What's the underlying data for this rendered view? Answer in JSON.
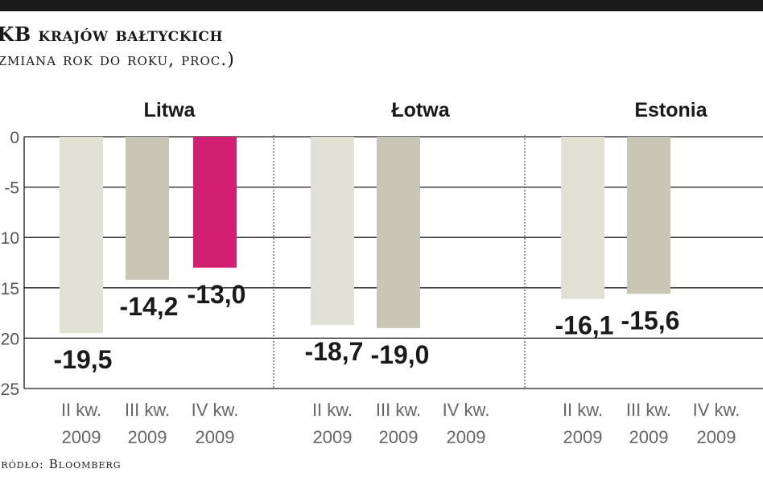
{
  "header": {
    "title": "PKB krajów bałtyckich",
    "subtitle": "(zmiana rok do roku, proc.)"
  },
  "footer": {
    "source": "Źródło: Bloomberg"
  },
  "colors": {
    "bar_q2": "#e2e1d6",
    "bar_q3": "#c8c7b6",
    "bar_q4": "#d31f72",
    "grid": "#1a1a1a"
  },
  "chart_data": {
    "type": "bar",
    "title": "PKB krajów bałtyckich",
    "subtitle": "(zmiana rok do roku, proc.)",
    "ylim": [
      -25,
      0
    ],
    "yticks": [
      0,
      -5,
      -10,
      -15,
      -20,
      -25
    ],
    "ytick_labels": [
      "0",
      "-5",
      "-10",
      "-15",
      "-20",
      "-25"
    ],
    "grid": true,
    "categories": [
      "II kw. 2009",
      "III kw. 2009",
      "IV kw. 2009"
    ],
    "category_lines": [
      [
        "II kw.",
        "2009"
      ],
      [
        "III kw.",
        "2009"
      ],
      [
        "IV kw.",
        "2009"
      ]
    ],
    "groups": [
      {
        "name": "Litwa",
        "values": [
          -19.5,
          -14.2,
          -13.0
        ],
        "labels": [
          "-19,5",
          "-14,2",
          "-13,0"
        ]
      },
      {
        "name": "Łotwa",
        "values": [
          -18.7,
          -19.0,
          null
        ],
        "labels": [
          "-18,7",
          "-19,0",
          ""
        ]
      },
      {
        "name": "Estonia",
        "values": [
          -16.1,
          -15.6,
          null
        ],
        "labels": [
          "-16,1",
          "-15,6",
          ""
        ]
      }
    ]
  }
}
